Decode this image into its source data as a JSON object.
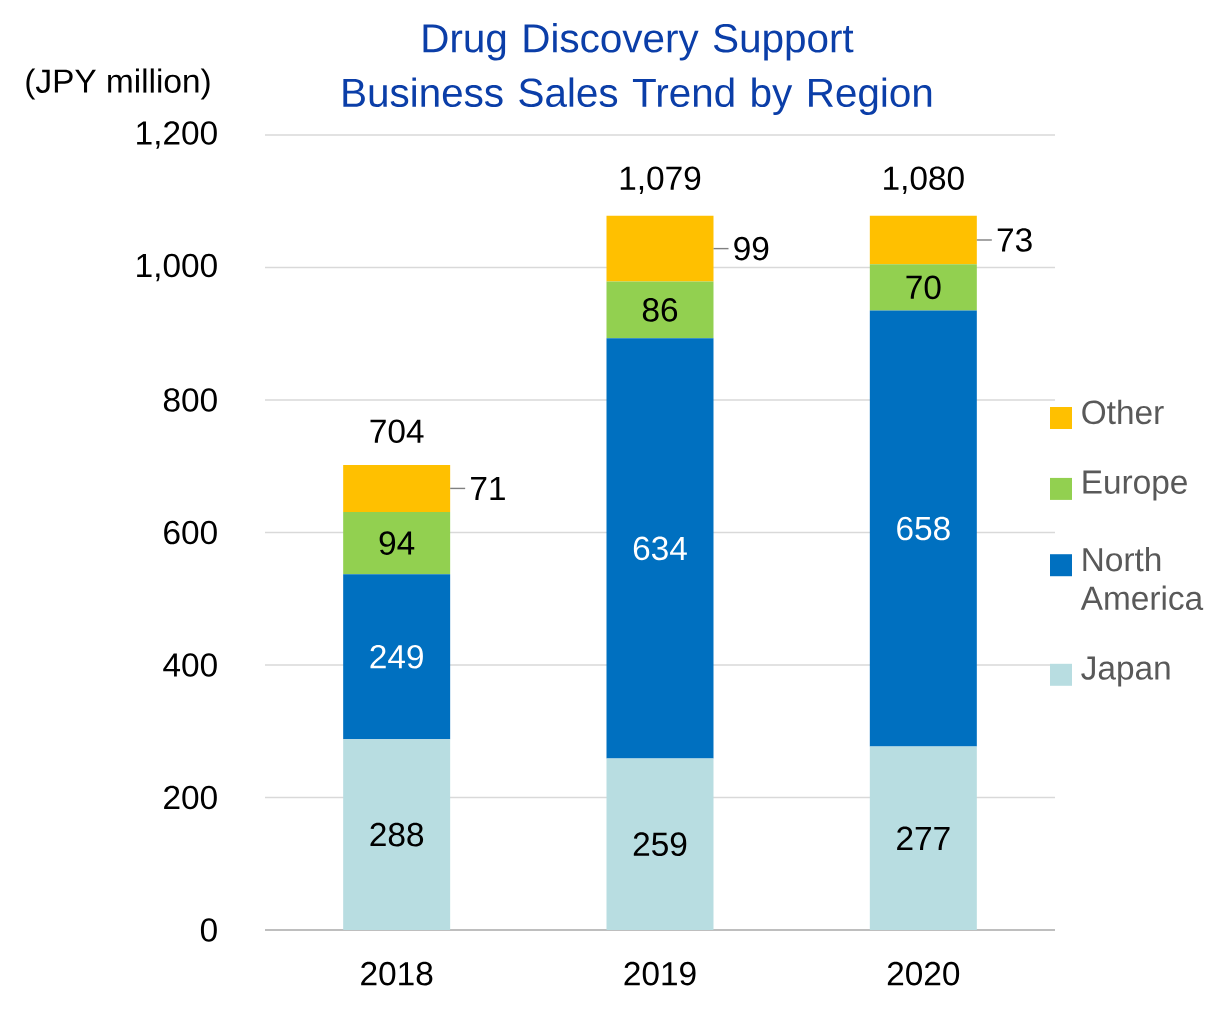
{
  "chart_data": {
    "type": "bar",
    "title": "Drug Discovery Support Business Sales Trend by Region",
    "ylabel": "(JPY million)",
    "categories": [
      "2018",
      "2019",
      "2020"
    ],
    "series": [
      {
        "name": "Japan",
        "color": "#b8dde1",
        "values": [
          288,
          259,
          277
        ]
      },
      {
        "name": "North America",
        "color": "#0070c0",
        "values": [
          249,
          634,
          658
        ]
      },
      {
        "name": "Europe",
        "color": "#92d050",
        "values": [
          94,
          86,
          70
        ]
      },
      {
        "name": "Other",
        "color": "#ffc000",
        "values": [
          71,
          99,
          73
        ]
      }
    ],
    "stacked": true,
    "data_labels": true,
    "totals": [
      "704",
      "1,079",
      "1,080"
    ],
    "ylim": [
      0,
      1200
    ],
    "yticks": [
      0,
      200,
      400,
      600,
      800,
      {
        "value": 1000,
        "label": "1,000"
      },
      {
        "value": 1200,
        "label": "1,200"
      }
    ],
    "grid": "y",
    "legend": "right"
  }
}
